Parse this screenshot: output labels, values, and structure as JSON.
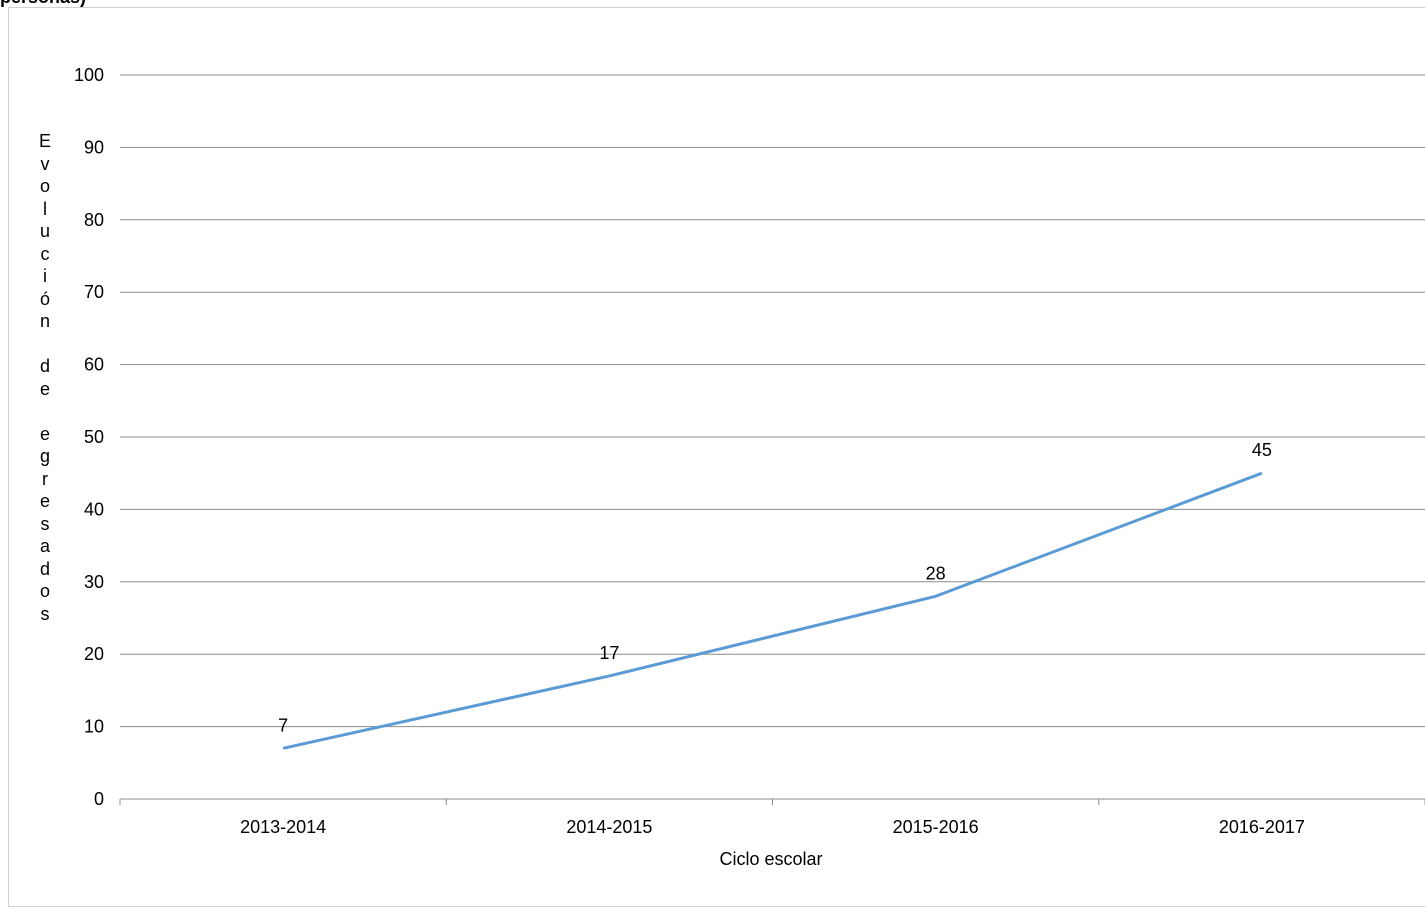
{
  "header": {
    "title": "personas)"
  },
  "chart_data": {
    "type": "line",
    "title": "personas)",
    "xlabel": "Ciclo escolar",
    "ylabel": "Evolución de egresados",
    "categories": [
      "2013-2014",
      "2014-2015",
      "2015-2016",
      "2016-2017"
    ],
    "series": [
      {
        "values": [
          7,
          17,
          28,
          45
        ],
        "color": "#5b9bd5"
      }
    ],
    "ylim": [
      0,
      100
    ],
    "yticks": [
      0,
      10,
      20,
      30,
      40,
      50,
      60,
      70,
      80,
      90,
      100
    ],
    "grid": true,
    "data_labels": true
  }
}
